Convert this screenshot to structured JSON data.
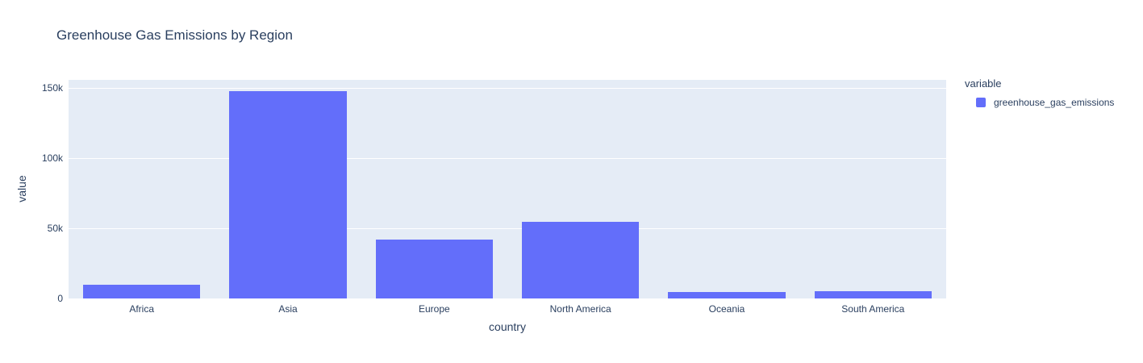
{
  "chart": {
    "title": "Greenhouse Gas Emissions by Region",
    "colors": {
      "text": "#2a3f5f",
      "paper_bg": "#ffffff",
      "plot_bg": "#e5ecf6",
      "grid": "#ffffff",
      "bar": "#636efa"
    }
  },
  "legend": {
    "title": "variable",
    "entries": [
      {
        "label": "greenhouse_gas_emissions",
        "color": "#636efa"
      }
    ]
  },
  "chart_data": {
    "type": "bar",
    "title": "Greenhouse Gas Emissions by Region",
    "xlabel": "country",
    "ylabel": "value",
    "categories": [
      "Africa",
      "Asia",
      "Europe",
      "North America",
      "Oceania",
      "South America"
    ],
    "series": [
      {
        "name": "greenhouse_gas_emissions",
        "color": "#636efa",
        "values": [
          9800,
          148000,
          42000,
          54500,
          4800,
          5300
        ]
      }
    ],
    "ylim": [
      0,
      156000
    ],
    "yticks": [
      {
        "value": 0,
        "label": "0"
      },
      {
        "value": 50000,
        "label": "50k"
      },
      {
        "value": 100000,
        "label": "100k"
      },
      {
        "value": 150000,
        "label": "150k"
      }
    ],
    "grid": true,
    "legend_position": "right",
    "bar_band_fraction": 0.8
  }
}
